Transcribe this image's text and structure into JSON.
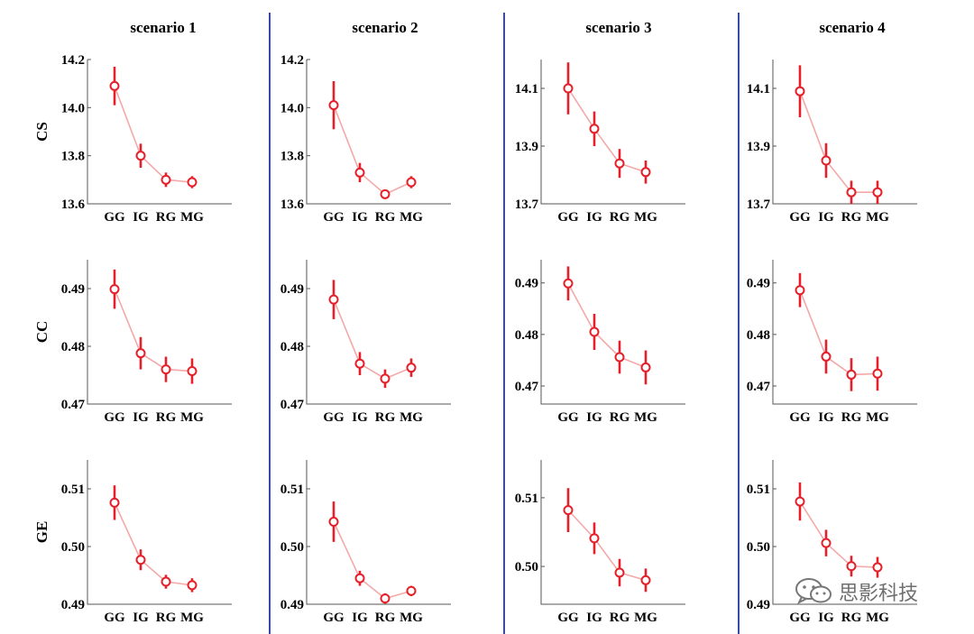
{
  "colors": {
    "line": "#f4a8a8",
    "marker": "#e5202a",
    "separator": "#3b4aa8",
    "watermark": "#6f6f6f"
  },
  "watermark": {
    "text": "思影科技",
    "icon": "wechat-logo-icon"
  },
  "chart_data": {
    "type": "line",
    "categories": [
      "GG",
      "IG",
      "RG",
      "MG"
    ],
    "scenarios": [
      "scenario 1",
      "scenario 2",
      "scenario 3",
      "scenario 4"
    ],
    "metrics": [
      "CS",
      "CC",
      "GE"
    ],
    "panels": [
      [
        {
          "ylim": [
            13.6,
            14.2
          ],
          "yticks": [
            "13.6",
            "13.8",
            "14.0",
            "14.2"
          ],
          "values": [
            14.09,
            13.8,
            13.7,
            13.69
          ],
          "err": [
            0.08,
            0.05,
            0.03,
            0.025
          ]
        },
        {
          "ylim": [
            0.47,
            0.495
          ],
          "yticks": [
            "0.47",
            "0.48",
            "0.49"
          ],
          "values": [
            0.4899,
            0.4788,
            0.476,
            0.4757
          ],
          "err": [
            0.0034,
            0.0028,
            0.0022,
            0.0022
          ]
        },
        {
          "ylim": [
            0.49,
            0.515
          ],
          "yticks": [
            "0.49",
            "0.50",
            "0.51"
          ],
          "values": [
            0.5076,
            0.4977,
            0.4939,
            0.4933
          ],
          "err": [
            0.003,
            0.0018,
            0.0012,
            0.0012
          ]
        }
      ],
      [
        {
          "ylim": [
            13.6,
            14.2
          ],
          "yticks": [
            "13.6",
            "13.8",
            "14.0",
            "14.2"
          ],
          "values": [
            14.01,
            13.73,
            13.64,
            13.69
          ],
          "err": [
            0.1,
            0.04,
            0.02,
            0.025
          ]
        },
        {
          "ylim": [
            0.47,
            0.495
          ],
          "yticks": [
            "0.47",
            "0.48",
            "0.49"
          ],
          "values": [
            0.4881,
            0.477,
            0.4744,
            0.4763
          ],
          "err": [
            0.0034,
            0.002,
            0.0016,
            0.0016
          ]
        },
        {
          "ylim": [
            0.49,
            0.515
          ],
          "yticks": [
            "0.49",
            "0.50",
            "0.51"
          ],
          "values": [
            0.5043,
            0.4945,
            0.491,
            0.4923
          ],
          "err": [
            0.0035,
            0.0013,
            0.0009,
            0.0009
          ]
        }
      ],
      [
        {
          "ylim": [
            13.7,
            14.2
          ],
          "yticks": [
            "13.7",
            "13.9",
            "14.1"
          ],
          "values": [
            14.1,
            13.96,
            13.84,
            13.81
          ],
          "err": [
            0.09,
            0.06,
            0.05,
            0.04
          ]
        },
        {
          "ylim": [
            0.4665,
            0.4945
          ],
          "yticks": [
            "0.47",
            "0.48",
            "0.49"
          ],
          "values": [
            0.4899,
            0.4805,
            0.4756,
            0.4736
          ],
          "err": [
            0.0033,
            0.0035,
            0.0032,
            0.0033
          ]
        },
        {
          "ylim": [
            0.4945,
            0.5155
          ],
          "yticks": [
            "0.50",
            "0.51"
          ],
          "values": [
            0.5082,
            0.5041,
            0.4991,
            0.498
          ],
          "err": [
            0.0032,
            0.0023,
            0.002,
            0.0017
          ]
        }
      ],
      [
        {
          "ylim": [
            13.7,
            14.2
          ],
          "yticks": [
            "13.7",
            "13.9",
            "14.1"
          ],
          "values": [
            14.09,
            13.85,
            13.74,
            13.74
          ],
          "err": [
            0.09,
            0.06,
            0.04,
            0.04
          ]
        },
        {
          "ylim": [
            0.4665,
            0.4945
          ],
          "yticks": [
            "0.47",
            "0.48",
            "0.49"
          ],
          "values": [
            0.4886,
            0.4757,
            0.4722,
            0.4724
          ],
          "err": [
            0.0033,
            0.0033,
            0.0032,
            0.0033
          ]
        },
        {
          "ylim": [
            0.49,
            0.515
          ],
          "yticks": [
            "0.49",
            "0.50",
            "0.51"
          ],
          "values": [
            0.5078,
            0.5006,
            0.4966,
            0.4964
          ],
          "err": [
            0.0033,
            0.0023,
            0.0018,
            0.0018
          ]
        }
      ]
    ]
  }
}
